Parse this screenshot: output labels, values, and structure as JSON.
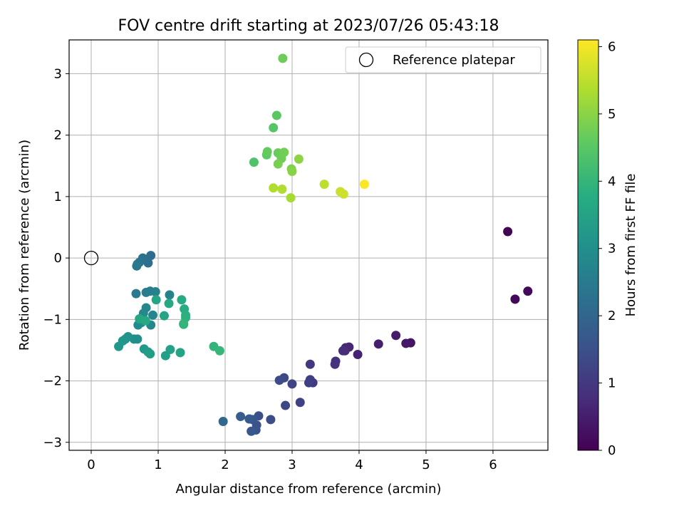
{
  "chart_data": {
    "type": "scatter",
    "title": "FOV centre drift starting at 2023/07/26 05:43:18",
    "xlabel": "Angular distance from reference (arcmin)",
    "ylabel": "Rotation from reference (arcmin)",
    "xlim": [
      -0.33,
      6.82
    ],
    "ylim": [
      -3.13,
      3.55
    ],
    "xticks": [
      0,
      1,
      2,
      3,
      4,
      5,
      6
    ],
    "yticks": [
      -3,
      -2,
      -1,
      0,
      1,
      2,
      3
    ],
    "grid": true,
    "legend": {
      "position": "top-right",
      "entries": [
        "Reference platepar"
      ]
    },
    "reference_point": {
      "x": 0,
      "y": 0,
      "marker": "open-circle"
    },
    "colorbar": {
      "label": "Hours from first FF file",
      "min": 0,
      "max": 6.1,
      "ticks": [
        0,
        1,
        2,
        3,
        4,
        5,
        6
      ],
      "colormap": "viridis"
    },
    "points": [
      {
        "x": 6.22,
        "y": 0.43,
        "c": 0.05
      },
      {
        "x": 6.33,
        "y": -0.67,
        "c": 0.1
      },
      {
        "x": 6.52,
        "y": -0.54,
        "c": 0.15
      },
      {
        "x": 4.77,
        "y": -1.38,
        "c": 0.35
      },
      {
        "x": 4.7,
        "y": -1.39,
        "c": 0.4
      },
      {
        "x": 4.55,
        "y": -1.26,
        "c": 0.45
      },
      {
        "x": 4.29,
        "y": -1.4,
        "c": 0.55
      },
      {
        "x": 3.98,
        "y": -1.57,
        "c": 0.6
      },
      {
        "x": 3.85,
        "y": -1.45,
        "c": 0.65
      },
      {
        "x": 3.8,
        "y": -1.46,
        "c": 0.7
      },
      {
        "x": 3.79,
        "y": -1.51,
        "c": 0.75
      },
      {
        "x": 3.76,
        "y": -1.51,
        "c": 0.8
      },
      {
        "x": 3.65,
        "y": -1.68,
        "c": 0.85
      },
      {
        "x": 3.64,
        "y": -1.73,
        "c": 0.9
      },
      {
        "x": 3.27,
        "y": -1.73,
        "c": 1.0
      },
      {
        "x": 3.31,
        "y": -2.03,
        "c": 1.05
      },
      {
        "x": 3.27,
        "y": -1.98,
        "c": 1.1
      },
      {
        "x": 3.25,
        "y": -2.03,
        "c": 1.15
      },
      {
        "x": 3.12,
        "y": -2.35,
        "c": 1.2
      },
      {
        "x": 3.0,
        "y": -2.05,
        "c": 1.25
      },
      {
        "x": 2.9,
        "y": -2.4,
        "c": 1.3
      },
      {
        "x": 2.88,
        "y": -1.95,
        "c": 1.35
      },
      {
        "x": 2.81,
        "y": -1.99,
        "c": 1.4
      },
      {
        "x": 2.68,
        "y": -2.63,
        "c": 1.45
      },
      {
        "x": 2.5,
        "y": -2.57,
        "c": 1.5
      },
      {
        "x": 2.47,
        "y": -2.72,
        "c": 1.55
      },
      {
        "x": 2.46,
        "y": -2.8,
        "c": 1.6
      },
      {
        "x": 2.41,
        "y": -2.63,
        "c": 1.65
      },
      {
        "x": 2.39,
        "y": -2.82,
        "c": 1.7
      },
      {
        "x": 2.36,
        "y": -2.62,
        "c": 1.75
      },
      {
        "x": 2.23,
        "y": -2.58,
        "c": 1.8
      },
      {
        "x": 1.97,
        "y": -2.66,
        "c": 2.1
      },
      {
        "x": 0.89,
        "y": 0.04,
        "c": 2.2
      },
      {
        "x": 0.85,
        "y": -0.08,
        "c": 2.25
      },
      {
        "x": 0.77,
        "y": 0.0,
        "c": 2.3
      },
      {
        "x": 0.72,
        "y": -0.07,
        "c": 2.35
      },
      {
        "x": 0.69,
        "y": -0.1,
        "c": 2.4
      },
      {
        "x": 0.68,
        "y": -0.13,
        "c": 2.45
      },
      {
        "x": 0.67,
        "y": -0.58,
        "c": 2.5
      },
      {
        "x": 0.82,
        "y": -0.56,
        "c": 2.55
      },
      {
        "x": 0.88,
        "y": -0.54,
        "c": 2.6
      },
      {
        "x": 0.96,
        "y": -0.55,
        "c": 2.65
      },
      {
        "x": 1.17,
        "y": -0.6,
        "c": 2.7
      },
      {
        "x": 0.92,
        "y": -0.93,
        "c": 2.75
      },
      {
        "x": 0.89,
        "y": -1.09,
        "c": 2.8
      },
      {
        "x": 0.82,
        "y": -0.81,
        "c": 2.8
      },
      {
        "x": 0.78,
        "y": -0.9,
        "c": 2.85
      },
      {
        "x": 0.7,
        "y": -1.09,
        "c": 2.9
      },
      {
        "x": 0.75,
        "y": -1.05,
        "c": 2.95
      },
      {
        "x": 0.69,
        "y": -1.32,
        "c": 3.0
      },
      {
        "x": 0.64,
        "y": -1.32,
        "c": 3.05
      },
      {
        "x": 0.55,
        "y": -1.28,
        "c": 3.1
      },
      {
        "x": 0.51,
        "y": -1.32,
        "c": 3.15
      },
      {
        "x": 0.47,
        "y": -1.35,
        "c": 3.2
      },
      {
        "x": 0.41,
        "y": -1.44,
        "c": 3.25
      },
      {
        "x": 0.79,
        "y": -1.48,
        "c": 3.3
      },
      {
        "x": 0.85,
        "y": -1.53,
        "c": 3.35
      },
      {
        "x": 0.88,
        "y": -1.56,
        "c": 3.4
      },
      {
        "x": 1.11,
        "y": -1.59,
        "c": 3.45
      },
      {
        "x": 1.18,
        "y": -1.49,
        "c": 3.5
      },
      {
        "x": 1.33,
        "y": -1.54,
        "c": 3.55
      },
      {
        "x": 0.97,
        "y": -0.68,
        "c": 3.6
      },
      {
        "x": 1.09,
        "y": -0.94,
        "c": 3.6
      },
      {
        "x": 0.72,
        "y": -0.99,
        "c": 3.65
      },
      {
        "x": 0.81,
        "y": -1.02,
        "c": 3.7
      },
      {
        "x": 1.16,
        "y": -0.74,
        "c": 3.7
      },
      {
        "x": 1.35,
        "y": -0.68,
        "c": 3.75
      },
      {
        "x": 1.39,
        "y": -0.83,
        "c": 3.8
      },
      {
        "x": 1.41,
        "y": -0.93,
        "c": 3.85
      },
      {
        "x": 1.41,
        "y": -0.97,
        "c": 3.9
      },
      {
        "x": 1.38,
        "y": -1.07,
        "c": 3.95
      },
      {
        "x": 1.38,
        "y": -1.08,
        "c": 4.0
      },
      {
        "x": 1.83,
        "y": -1.44,
        "c": 4.0
      },
      {
        "x": 1.92,
        "y": -1.51,
        "c": 4.05
      },
      {
        "x": 2.43,
        "y": 1.56,
        "c": 4.4
      },
      {
        "x": 2.72,
        "y": 2.12,
        "c": 4.5
      },
      {
        "x": 2.77,
        "y": 2.32,
        "c": 4.55
      },
      {
        "x": 2.62,
        "y": 1.68,
        "c": 4.6
      },
      {
        "x": 2.63,
        "y": 1.73,
        "c": 4.65
      },
      {
        "x": 2.79,
        "y": 1.71,
        "c": 4.7
      },
      {
        "x": 2.84,
        "y": 1.62,
        "c": 4.75
      },
      {
        "x": 2.86,
        "y": 3.25,
        "c": 4.75
      },
      {
        "x": 2.88,
        "y": 1.72,
        "c": 4.8
      },
      {
        "x": 2.79,
        "y": 1.53,
        "c": 4.85
      },
      {
        "x": 2.99,
        "y": 1.45,
        "c": 4.9
      },
      {
        "x": 3.0,
        "y": 1.41,
        "c": 5.0
      },
      {
        "x": 3.1,
        "y": 1.61,
        "c": 5.05
      },
      {
        "x": 2.98,
        "y": 0.98,
        "c": 5.3
      },
      {
        "x": 2.72,
        "y": 1.14,
        "c": 5.4
      },
      {
        "x": 2.85,
        "y": 1.12,
        "c": 5.4
      },
      {
        "x": 3.48,
        "y": 1.2,
        "c": 5.5
      },
      {
        "x": 3.72,
        "y": 1.08,
        "c": 5.6
      },
      {
        "x": 3.77,
        "y": 1.04,
        "c": 5.65
      },
      {
        "x": 4.08,
        "y": 1.2,
        "c": 6.1
      }
    ]
  },
  "legend_text": "Reference platepar",
  "colorbar_label": "Hours from first FF file"
}
